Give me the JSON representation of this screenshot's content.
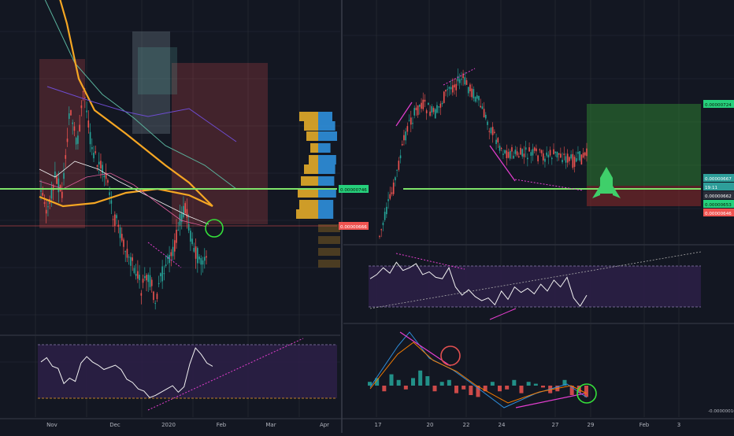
{
  "theme": {
    "background": "#131722",
    "grid": "#2a2e39",
    "separator": "#3a3e4a",
    "axis_text": "#b2b5be",
    "candle_up": "#26a69a",
    "candle_down": "#ef5350",
    "price_tag_green": "#26d07c",
    "price_tag_red": "#ef5350",
    "price_tag_teal": "#2e9e9a",
    "green_line": "#7ee36a",
    "ma_orange": "#f5a623",
    "rsi_band": "#2b1f45",
    "divergence": "#e53ed0",
    "circle_green": "#35e03a",
    "circle_red": "#e05050",
    "rocket": "#3fcf6a"
  },
  "chart_data": [
    {
      "type": "candlestick",
      "panel": "left-price",
      "x_labels": [
        "Nov",
        "Dec",
        "2020",
        "Feb",
        "Mar",
        "Apr"
      ],
      "price_labels": [
        "0.00000746",
        "0.00000666"
      ],
      "price_label_colors": [
        "green",
        "red"
      ],
      "series": [
        {
          "name": "close",
          "values": [
            7.5e-06,
            7.2e-06,
            7.6e-06,
            7.4e-06,
            8.3e-06,
            7.9e-06,
            8.5e-06,
            7.9e-06,
            7.7e-06,
            7.6e-06,
            7.2e-06,
            7e-06,
            6.8e-06,
            6.6e-06,
            6.4e-06,
            6.5e-06,
            6.3e-06,
            6.6e-06,
            6.7e-06,
            7e-06,
            7.3e-06,
            6.9e-06,
            6.7e-06,
            6.7e-06
          ]
        }
      ],
      "indicators": [
        "moving averages",
        "volume profile",
        "shaded zones"
      ]
    },
    {
      "type": "line",
      "panel": "left-rsi",
      "x_labels": [
        "Nov",
        "Dec",
        "2020",
        "Feb",
        "Mar",
        "Apr"
      ],
      "band_upper": 70,
      "band_lower": 30,
      "values": [
        56,
        60,
        52,
        50,
        36,
        41,
        38,
        55,
        61,
        56,
        53,
        49,
        51,
        53,
        49,
        40,
        37,
        31,
        29,
        23,
        25,
        28,
        31,
        34,
        28,
        33,
        54,
        69,
        63,
        55,
        52
      ]
    },
    {
      "type": "candlestick",
      "panel": "right-price",
      "x_labels": [
        "17",
        "20",
        "22",
        "24",
        "27",
        "29",
        "Feb",
        "3"
      ],
      "price_labels": [
        "0.00000724",
        "0.00000667",
        "19:11",
        "0.00000662",
        "0.00000653",
        "0.00000646"
      ],
      "price_label_colors": [
        "green",
        "teal",
        "teal",
        "dark",
        "green",
        "red"
      ],
      "series": [
        {
          "name": "close",
          "values": [
            6e-06,
            6.4e-06,
            6.9e-06,
            7.1e-06,
            7e-06,
            7.22e-06,
            7.3e-06,
            7.15e-06,
            6.9e-06,
            6.7e-06,
            6.67e-06,
            6.68e-06,
            6.66e-06,
            6.68e-06,
            6.62e-06,
            6.67e-06
          ]
        }
      ],
      "position_tool": {
        "entry": 6.62e-06,
        "target": 7.24e-06,
        "stop": 6.46e-06
      }
    },
    {
      "type": "line",
      "panel": "right-rsi",
      "x_labels": [
        "17",
        "20",
        "22",
        "24",
        "27",
        "29",
        "Feb",
        "3"
      ],
      "band_upper": 70,
      "band_lower": 30,
      "values": [
        52,
        55,
        60,
        56,
        64,
        58,
        60,
        63,
        55,
        57,
        53,
        52,
        60,
        46,
        40,
        44,
        39,
        36,
        38,
        33,
        43,
        37,
        46,
        42,
        45,
        41,
        48,
        43,
        51,
        46,
        53,
        38,
        32,
        40
      ]
    },
    {
      "type": "bar",
      "panel": "right-macd",
      "x_labels": [
        "17",
        "20",
        "22",
        "24",
        "27",
        "29",
        "Feb",
        "3"
      ],
      "y_tick_labels": [
        "-0.00000010"
      ],
      "histogram": [
        2,
        4,
        -3,
        6,
        3,
        -2,
        4,
        8,
        5,
        -3,
        2,
        3,
        -4,
        -2,
        -5,
        -6,
        -3,
        2,
        -3,
        -2,
        3,
        -4,
        2,
        1,
        -1,
        -4,
        -3,
        3,
        -5,
        -4,
        -6
      ]
    }
  ]
}
